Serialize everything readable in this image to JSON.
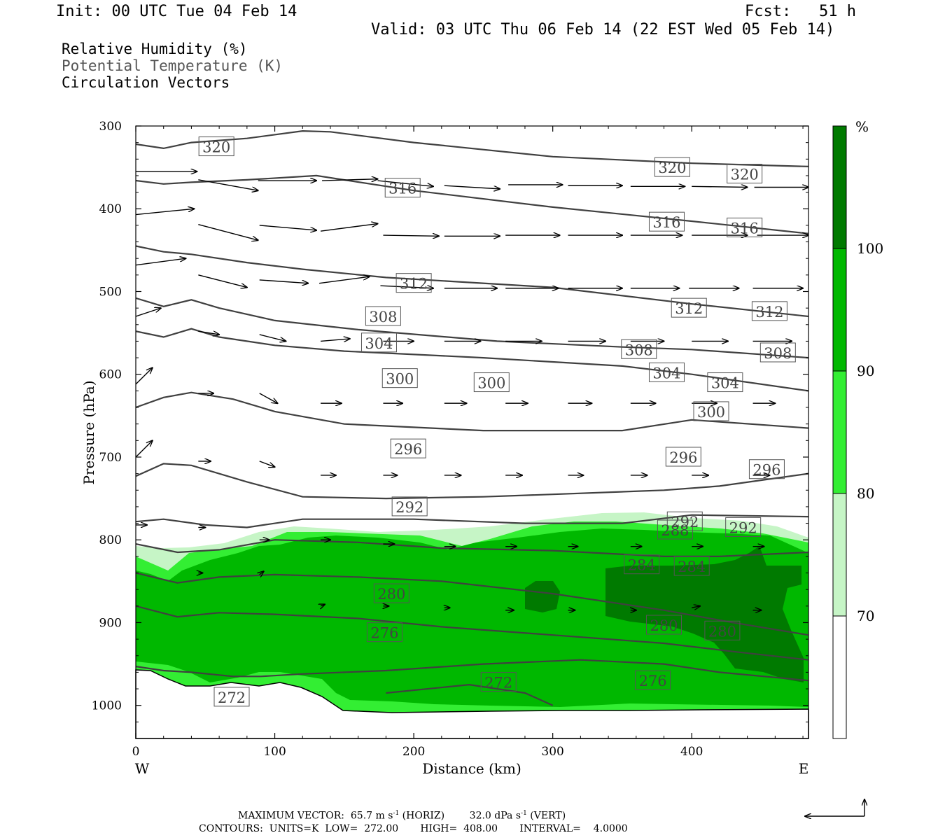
{
  "header": {
    "init": "Init: 00 UTC Tue 04 Feb 14",
    "fcst": "Fcst:   51 h",
    "valid": "Valid: 03 UTC Thu 06 Feb 14 (22 EST Wed 05 Feb 14)"
  },
  "legend": {
    "rh": "Relative Humidity (%)",
    "theta": "Potential Temperature (K)",
    "vectors": "Circulation Vectors"
  },
  "footer": {
    "max_vector_prefix": "MAXIMUM VECTOR:  65.7 m s",
    "horiz_suffix": " (HORIZ)",
    "vert_prefix": "32.0 dPa s",
    "vert_suffix": " (VERT)",
    "exponent": "-1",
    "contours": "CONTOURS:  UNITS=K  LOW=  272.00       HIGH=  408.00       INTERVAL=    4.0000"
  },
  "colors": {
    "rh_70_80": "#c6f5c6",
    "rh_80_90": "#33ee33",
    "rh_90_100": "#00b800",
    "rh_100_plus": "#007a00",
    "contour": "#404040"
  },
  "chart_data": {
    "type": "cross-section",
    "xlabel": "Distance (km)",
    "ylabel": "Pressure (hPa)",
    "xlim": [
      0,
      484
    ],
    "ylim": [
      1040,
      300
    ],
    "x_ticks": [
      0,
      100,
      200,
      300,
      400
    ],
    "y_ticks": [
      300,
      400,
      500,
      600,
      700,
      800,
      900,
      1000
    ],
    "x_end_labels": [
      "W",
      "E"
    ],
    "colorbar": {
      "unit": "%",
      "levels": [
        70,
        80,
        90,
        100
      ],
      "colors": [
        "#ffffff",
        "#c6f5c6",
        "#33ee33",
        "#00b800",
        "#007a00"
      ]
    },
    "theta_contours": [
      {
        "level": 320,
        "points": [
          [
            0,
            322
          ],
          [
            20,
            327
          ],
          [
            40,
            320
          ],
          [
            80,
            315
          ],
          [
            120,
            306
          ],
          [
            140,
            307
          ],
          [
            200,
            320
          ],
          [
            300,
            337
          ],
          [
            400,
            345
          ],
          [
            484,
            349
          ]
        ],
        "labels": [
          [
            58,
            325,
            "320"
          ],
          [
            386,
            350,
            "320"
          ],
          [
            438,
            358,
            "320"
          ]
        ]
      },
      {
        "level": 316,
        "points": [
          [
            0,
            366
          ],
          [
            20,
            370
          ],
          [
            40,
            368
          ],
          [
            80,
            365
          ],
          [
            130,
            360
          ],
          [
            200,
            378
          ],
          [
            300,
            398
          ],
          [
            400,
            415
          ],
          [
            484,
            430
          ]
        ],
        "labels": [
          [
            192,
            375,
            "316"
          ],
          [
            382,
            416,
            "316"
          ],
          [
            438,
            423,
            "316"
          ]
        ]
      },
      {
        "level": 312,
        "points": [
          [
            0,
            445
          ],
          [
            20,
            452
          ],
          [
            40,
            455
          ],
          [
            80,
            465
          ],
          [
            120,
            473
          ],
          [
            180,
            483
          ],
          [
            300,
            495
          ],
          [
            400,
            515
          ],
          [
            484,
            530
          ]
        ],
        "labels": [
          [
            200,
            490,
            "312"
          ],
          [
            398,
            520,
            "312"
          ],
          [
            456,
            524,
            "312"
          ]
        ]
      },
      {
        "level": 308,
        "points": [
          [
            0,
            508
          ],
          [
            20,
            518
          ],
          [
            40,
            510
          ],
          [
            60,
            520
          ],
          [
            100,
            535
          ],
          [
            160,
            546
          ],
          [
            260,
            560
          ],
          [
            350,
            567
          ],
          [
            400,
            570
          ],
          [
            484,
            580
          ]
        ],
        "labels": [
          [
            178,
            530,
            "308"
          ],
          [
            362,
            570,
            "308"
          ],
          [
            462,
            574,
            "308"
          ]
        ]
      },
      {
        "level": 304,
        "points": [
          [
            0,
            548
          ],
          [
            20,
            555
          ],
          [
            40,
            545
          ],
          [
            60,
            555
          ],
          [
            100,
            565
          ],
          [
            150,
            572
          ],
          [
            250,
            580
          ],
          [
            350,
            590
          ],
          [
            400,
            600
          ],
          [
            484,
            620
          ]
        ],
        "labels": [
          [
            175,
            562,
            "304"
          ],
          [
            382,
            598,
            "304"
          ],
          [
            424,
            610,
            "304"
          ]
        ]
      },
      {
        "level": 300,
        "points": [
          [
            0,
            640
          ],
          [
            20,
            628
          ],
          [
            40,
            622
          ],
          [
            70,
            630
          ],
          [
            100,
            645
          ],
          [
            150,
            660
          ],
          [
            250,
            668
          ],
          [
            350,
            668
          ],
          [
            400,
            655
          ],
          [
            484,
            665
          ]
        ],
        "labels": [
          [
            190,
            605,
            "300"
          ],
          [
            256,
            610,
            "300"
          ],
          [
            414,
            645,
            "300"
          ]
        ]
      },
      {
        "level": 296,
        "points": [
          [
            0,
            723
          ],
          [
            20,
            708
          ],
          [
            40,
            710
          ],
          [
            80,
            730
          ],
          [
            120,
            748
          ],
          [
            180,
            750
          ],
          [
            250,
            748
          ],
          [
            300,
            745
          ],
          [
            380,
            740
          ],
          [
            420,
            735
          ],
          [
            484,
            720
          ]
        ],
        "labels": [
          [
            196,
            690,
            "296"
          ],
          [
            394,
            700,
            "296"
          ],
          [
            454,
            715,
            "296"
          ]
        ]
      },
      {
        "level": 292,
        "points": [
          [
            0,
            778
          ],
          [
            20,
            775
          ],
          [
            50,
            782
          ],
          [
            80,
            785
          ],
          [
            120,
            775
          ],
          [
            200,
            775
          ],
          [
            280,
            780
          ],
          [
            350,
            780
          ],
          [
            400,
            770
          ],
          [
            484,
            772
          ]
        ],
        "labels": [
          [
            197,
            760,
            "292"
          ],
          [
            395,
            778,
            "292"
          ],
          [
            437,
            785,
            "292"
          ]
        ]
      },
      {
        "level": 288,
        "points": [
          [
            0,
            805
          ],
          [
            30,
            815
          ],
          [
            60,
            812
          ],
          [
            100,
            800
          ],
          [
            160,
            803
          ],
          [
            220,
            810
          ],
          [
            300,
            813
          ],
          [
            380,
            820
          ],
          [
            420,
            820
          ],
          [
            484,
            815
          ]
        ],
        "labels": [
          [
            388,
            788,
            "288"
          ]
        ]
      },
      {
        "level": 284,
        "points": [
          [
            0,
            840
          ],
          [
            30,
            852
          ],
          [
            60,
            845
          ],
          [
            100,
            842
          ],
          [
            160,
            845
          ],
          [
            220,
            850
          ],
          [
            300,
            865
          ],
          [
            380,
            885
          ],
          [
            430,
            900
          ],
          [
            484,
            915
          ]
        ],
        "labels": [
          [
            364,
            830,
            "284"
          ],
          [
            400,
            832,
            "284"
          ]
        ]
      },
      {
        "level": 280,
        "points": [
          [
            0,
            880
          ],
          [
            30,
            893
          ],
          [
            60,
            888
          ],
          [
            100,
            890
          ],
          [
            160,
            895
          ],
          [
            220,
            905
          ],
          [
            300,
            915
          ],
          [
            380,
            925
          ],
          [
            430,
            935
          ],
          [
            484,
            945
          ]
        ],
        "labels": [
          [
            184,
            865,
            "280"
          ],
          [
            380,
            903,
            "280"
          ],
          [
            422,
            910,
            "280"
          ]
        ]
      },
      {
        "level": 276,
        "points": [
          [
            0,
            953
          ],
          [
            20,
            958
          ],
          [
            40,
            960
          ],
          [
            70,
            965
          ],
          [
            90,
            965
          ],
          [
            120,
            962
          ],
          [
            180,
            958
          ],
          [
            250,
            950
          ],
          [
            320,
            945
          ],
          [
            380,
            950
          ],
          [
            420,
            960
          ],
          [
            484,
            970
          ]
        ],
        "labels": [
          [
            179,
            912,
            "276"
          ],
          [
            372,
            970,
            "276"
          ]
        ]
      },
      {
        "level": 272,
        "points": [
          [
            180,
            985
          ],
          [
            240,
            975
          ],
          [
            280,
            985
          ],
          [
            300,
            1000
          ]
        ],
        "labels": [
          [
            261,
            972,
            "272"
          ],
          [
            69,
            990,
            "272"
          ]
        ]
      }
    ],
    "vectors": [
      [
        0,
        355,
        44,
        355
      ],
      [
        45,
        365,
        88,
        378
      ],
      [
        88,
        366,
        130,
        366
      ],
      [
        134,
        366,
        174,
        364
      ],
      [
        174,
        366,
        214,
        373
      ],
      [
        222,
        372,
        262,
        376
      ],
      [
        268,
        371,
        307,
        371
      ],
      [
        311,
        372,
        350,
        372
      ],
      [
        356,
        373,
        395,
        373
      ],
      [
        400,
        373,
        440,
        374
      ],
      [
        445,
        374,
        484,
        374
      ],
      [
        0,
        407,
        42,
        400
      ],
      [
        45,
        419,
        88,
        438
      ],
      [
        89,
        420,
        130,
        426
      ],
      [
        133,
        427,
        174,
        418
      ],
      [
        178,
        432,
        218,
        433
      ],
      [
        222,
        433,
        262,
        433
      ],
      [
        266,
        432,
        305,
        432
      ],
      [
        311,
        432,
        350,
        432
      ],
      [
        356,
        432,
        393,
        432
      ],
      [
        400,
        432,
        440,
        432
      ],
      [
        447,
        432,
        484,
        432
      ],
      [
        0,
        468,
        36,
        460
      ],
      [
        45,
        480,
        80,
        495
      ],
      [
        89,
        486,
        124,
        490
      ],
      [
        132,
        490,
        168,
        482
      ],
      [
        176,
        493,
        214,
        496
      ],
      [
        222,
        496,
        260,
        496
      ],
      [
        266,
        496,
        304,
        496
      ],
      [
        311,
        496,
        350,
        496
      ],
      [
        356,
        496,
        391,
        496
      ],
      [
        398,
        496,
        434,
        496
      ],
      [
        444,
        496,
        480,
        496
      ],
      [
        0,
        530,
        18,
        520
      ],
      [
        45,
        548,
        60,
        552
      ],
      [
        89,
        552,
        108,
        560
      ],
      [
        133,
        560,
        154,
        557
      ],
      [
        178,
        560,
        200,
        560
      ],
      [
        222,
        560,
        248,
        560
      ],
      [
        266,
        560,
        292,
        560
      ],
      [
        311,
        560,
        338,
        560
      ],
      [
        356,
        560,
        380,
        560
      ],
      [
        400,
        560,
        426,
        560
      ],
      [
        444,
        560,
        472,
        560
      ],
      [
        0,
        612,
        12,
        592
      ],
      [
        45,
        623,
        56,
        623
      ],
      [
        89,
        623,
        102,
        635
      ],
      [
        133,
        635,
        148,
        635
      ],
      [
        178,
        635,
        192,
        635
      ],
      [
        222,
        635,
        238,
        635
      ],
      [
        266,
        635,
        282,
        635
      ],
      [
        311,
        635,
        328,
        635
      ],
      [
        356,
        635,
        374,
        635
      ],
      [
        400,
        635,
        418,
        635
      ],
      [
        444,
        635,
        460,
        635
      ],
      [
        0,
        700,
        12,
        680
      ],
      [
        45,
        705,
        54,
        705
      ],
      [
        89,
        705,
        100,
        712
      ],
      [
        133,
        722,
        144,
        722
      ],
      [
        178,
        722,
        188,
        722
      ],
      [
        222,
        722,
        234,
        722
      ],
      [
        266,
        722,
        278,
        722
      ],
      [
        311,
        722,
        322,
        722
      ],
      [
        356,
        722,
        368,
        722
      ],
      [
        400,
        722,
        412,
        722
      ],
      [
        444,
        722,
        456,
        722
      ],
      [
        0,
        782,
        8,
        782
      ],
      [
        45,
        785,
        50,
        785
      ],
      [
        89,
        800,
        96,
        800
      ],
      [
        133,
        800,
        140,
        800
      ],
      [
        178,
        805,
        186,
        805
      ],
      [
        222,
        808,
        230,
        808
      ],
      [
        266,
        808,
        274,
        808
      ],
      [
        311,
        808,
        318,
        808
      ],
      [
        356,
        808,
        364,
        808
      ],
      [
        400,
        808,
        408,
        808
      ],
      [
        444,
        808,
        452,
        808
      ],
      [
        45,
        840,
        48,
        840
      ],
      [
        89,
        842,
        92,
        838
      ],
      [
        133,
        880,
        136,
        878
      ],
      [
        178,
        880,
        182,
        880
      ],
      [
        222,
        882,
        226,
        882
      ],
      [
        266,
        885,
        272,
        885
      ],
      [
        311,
        885,
        316,
        885
      ],
      [
        356,
        885,
        360,
        885
      ],
      [
        400,
        882,
        406,
        880
      ],
      [
        444,
        885,
        450,
        885
      ]
    ]
  }
}
